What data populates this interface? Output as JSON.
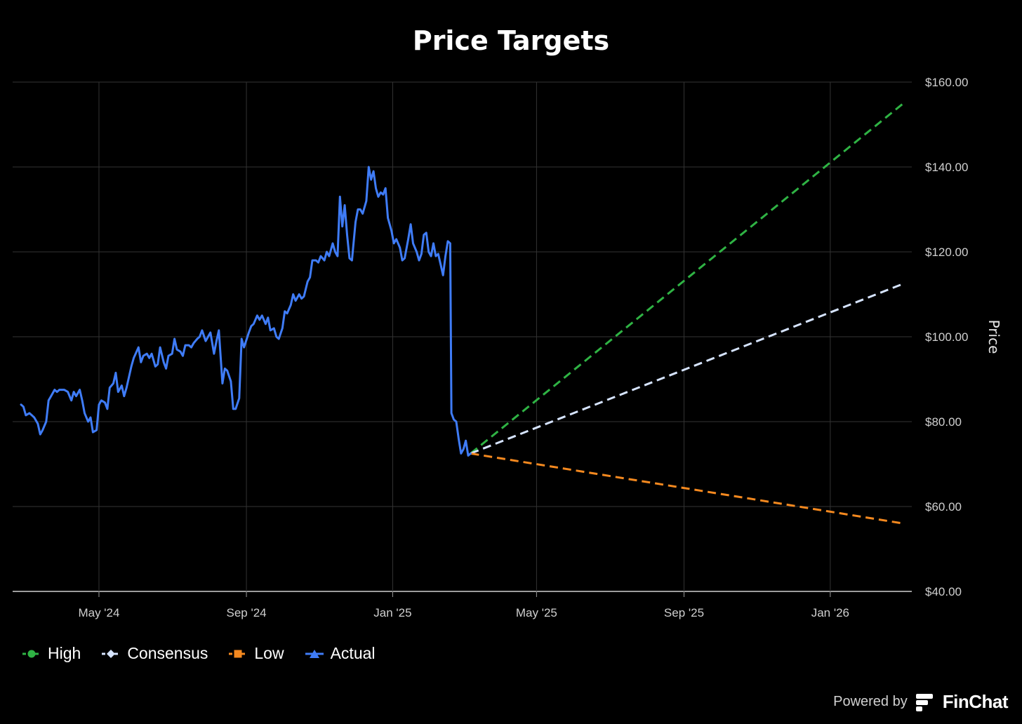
{
  "chart_data": {
    "type": "line",
    "title": "Price Targets",
    "ylabel": "Price",
    "ylim": [
      40,
      160
    ],
    "y_ticks": [
      40,
      60,
      80,
      100,
      120,
      140,
      160
    ],
    "y_tick_labels": [
      "$40.00",
      "$60.00",
      "$80.00",
      "$100.00",
      "$120.00",
      "$140.00",
      "$160.00"
    ],
    "x_ticks": [
      "2024-05-01",
      "2024-09-01",
      "2025-01-01",
      "2025-05-01",
      "2025-09-01",
      "2026-01-01"
    ],
    "x_tick_labels": [
      "May '24",
      "Sep '24",
      "Jan '25",
      "May '25",
      "Sep '25",
      "Jan '26"
    ],
    "xlim": [
      "2024-02-19",
      "2026-03-10"
    ],
    "grid": true,
    "legend_position": "bottom-left",
    "series": [
      {
        "name": "High",
        "color": "#2fb344",
        "style": "dashed",
        "marker": "circle",
        "points": [
          [
            "2025-03-07",
            72.5
          ],
          [
            "2026-03-03",
            155
          ]
        ]
      },
      {
        "name": "Consensus",
        "color": "#d6e4ff",
        "style": "dashed",
        "marker": "diamond",
        "points": [
          [
            "2025-03-07",
            72.5
          ],
          [
            "2026-03-03",
            112.5
          ]
        ]
      },
      {
        "name": "Low",
        "color": "#f5891f",
        "style": "dashed",
        "marker": "square",
        "points": [
          [
            "2025-03-07",
            72.5
          ],
          [
            "2026-03-03",
            56
          ]
        ]
      },
      {
        "name": "Actual",
        "color": "#3f7cf7",
        "style": "solid",
        "marker": "triangle",
        "points": [
          [
            "2024-02-26",
            84
          ],
          [
            "2024-02-28",
            83.5
          ],
          [
            "2024-03-01",
            81.5
          ],
          [
            "2024-03-04",
            82
          ],
          [
            "2024-03-06",
            81.5
          ],
          [
            "2024-03-08",
            81
          ],
          [
            "2024-03-11",
            79.5
          ],
          [
            "2024-03-13",
            77
          ],
          [
            "2024-03-15",
            78
          ],
          [
            "2024-03-18",
            80
          ],
          [
            "2024-03-20",
            85
          ],
          [
            "2024-03-22",
            86
          ],
          [
            "2024-03-25",
            87.5
          ],
          [
            "2024-03-27",
            87
          ],
          [
            "2024-03-29",
            87.5
          ],
          [
            "2024-04-02",
            87.5
          ],
          [
            "2024-04-05",
            87
          ],
          [
            "2024-04-08",
            85
          ],
          [
            "2024-04-10",
            87
          ],
          [
            "2024-04-12",
            86
          ],
          [
            "2024-04-15",
            87.5
          ],
          [
            "2024-04-17",
            85
          ],
          [
            "2024-04-19",
            82
          ],
          [
            "2024-04-22",
            80
          ],
          [
            "2024-04-24",
            81
          ],
          [
            "2024-04-26",
            77.5
          ],
          [
            "2024-04-29",
            78
          ],
          [
            "2024-05-01",
            84
          ],
          [
            "2024-05-03",
            85
          ],
          [
            "2024-05-06",
            84.5
          ],
          [
            "2024-05-08",
            83
          ],
          [
            "2024-05-10",
            88
          ],
          [
            "2024-05-13",
            89
          ],
          [
            "2024-05-15",
            91.5
          ],
          [
            "2024-05-17",
            87
          ],
          [
            "2024-05-20",
            88.5
          ],
          [
            "2024-05-22",
            86
          ],
          [
            "2024-05-24",
            88
          ],
          [
            "2024-05-28",
            93
          ],
          [
            "2024-05-30",
            95
          ],
          [
            "2024-06-03",
            97.5
          ],
          [
            "2024-06-05",
            94
          ],
          [
            "2024-06-07",
            95.5
          ],
          [
            "2024-06-10",
            96
          ],
          [
            "2024-06-12",
            95
          ],
          [
            "2024-06-14",
            96
          ],
          [
            "2024-06-17",
            93
          ],
          [
            "2024-06-19",
            93.5
          ],
          [
            "2024-06-21",
            97.5
          ],
          [
            "2024-06-24",
            94
          ],
          [
            "2024-06-26",
            92.5
          ],
          [
            "2024-06-28",
            95.5
          ],
          [
            "2024-07-01",
            96
          ],
          [
            "2024-07-03",
            99.5
          ],
          [
            "2024-07-05",
            97
          ],
          [
            "2024-07-08",
            96.5
          ],
          [
            "2024-07-10",
            95.5
          ],
          [
            "2024-07-12",
            98
          ],
          [
            "2024-07-15",
            98
          ],
          [
            "2024-07-17",
            97.5
          ],
          [
            "2024-07-19",
            98.5
          ],
          [
            "2024-07-22",
            99.5
          ],
          [
            "2024-07-24",
            100
          ],
          [
            "2024-07-26",
            101.5
          ],
          [
            "2024-07-29",
            99
          ],
          [
            "2024-07-31",
            100
          ],
          [
            "2024-08-02",
            101
          ],
          [
            "2024-08-05",
            96
          ],
          [
            "2024-08-07",
            99
          ],
          [
            "2024-08-09",
            101.5
          ],
          [
            "2024-08-12",
            89
          ],
          [
            "2024-08-14",
            92.5
          ],
          [
            "2024-08-16",
            92
          ],
          [
            "2024-08-19",
            89.5
          ],
          [
            "2024-08-21",
            83
          ],
          [
            "2024-08-23",
            83
          ],
          [
            "2024-08-26",
            85.5
          ],
          [
            "2024-08-28",
            99.5
          ],
          [
            "2024-08-30",
            97.5
          ],
          [
            "2024-09-03",
            101
          ],
          [
            "2024-09-05",
            102.5
          ],
          [
            "2024-09-07",
            103
          ],
          [
            "2024-09-10",
            105
          ],
          [
            "2024-09-12",
            104
          ],
          [
            "2024-09-14",
            105
          ],
          [
            "2024-09-17",
            103
          ],
          [
            "2024-09-19",
            104.5
          ],
          [
            "2024-09-21",
            101.5
          ],
          [
            "2024-09-24",
            102
          ],
          [
            "2024-09-26",
            100
          ],
          [
            "2024-09-28",
            99.5
          ],
          [
            "2024-10-01",
            102
          ],
          [
            "2024-10-03",
            106
          ],
          [
            "2024-10-05",
            105.5
          ],
          [
            "2024-10-08",
            107.5
          ],
          [
            "2024-10-10",
            110
          ],
          [
            "2024-10-12",
            108.5
          ],
          [
            "2024-10-15",
            110
          ],
          [
            "2024-10-17",
            109
          ],
          [
            "2024-10-19",
            109.5
          ],
          [
            "2024-10-22",
            113
          ],
          [
            "2024-10-24",
            114
          ],
          [
            "2024-10-26",
            118
          ],
          [
            "2024-10-29",
            118
          ],
          [
            "2024-10-31",
            117.5
          ],
          [
            "2024-11-02",
            119
          ],
          [
            "2024-11-05",
            118
          ],
          [
            "2024-11-07",
            120
          ],
          [
            "2024-11-09",
            119
          ],
          [
            "2024-11-12",
            122
          ],
          [
            "2024-11-14",
            120
          ],
          [
            "2024-11-16",
            119
          ],
          [
            "2024-11-18",
            133
          ],
          [
            "2024-11-20",
            126
          ],
          [
            "2024-11-22",
            131
          ],
          [
            "2024-11-24",
            124
          ],
          [
            "2024-11-26",
            118.5
          ],
          [
            "2024-11-28",
            118
          ],
          [
            "2024-12-01",
            127
          ],
          [
            "2024-12-03",
            130
          ],
          [
            "2024-12-05",
            130
          ],
          [
            "2024-12-07",
            129
          ],
          [
            "2024-12-10",
            132
          ],
          [
            "2024-12-12",
            140
          ],
          [
            "2024-12-14",
            137
          ],
          [
            "2024-12-16",
            139
          ],
          [
            "2024-12-18",
            135
          ],
          [
            "2024-12-20",
            133
          ],
          [
            "2024-12-22",
            134
          ],
          [
            "2024-12-24",
            133.5
          ],
          [
            "2024-12-26",
            135
          ],
          [
            "2024-12-28",
            128
          ],
          [
            "2024-12-31",
            125
          ],
          [
            "2025-01-02",
            122
          ],
          [
            "2025-01-04",
            123
          ],
          [
            "2025-01-07",
            121
          ],
          [
            "2025-01-09",
            118
          ],
          [
            "2025-01-11",
            118.5
          ],
          [
            "2025-01-14",
            123
          ],
          [
            "2025-01-16",
            126.5
          ],
          [
            "2025-01-18",
            122
          ],
          [
            "2025-01-21",
            120
          ],
          [
            "2025-01-23",
            118
          ],
          [
            "2025-01-25",
            119.5
          ],
          [
            "2025-01-27",
            124
          ],
          [
            "2025-01-29",
            124.5
          ],
          [
            "2025-01-31",
            120
          ],
          [
            "2025-02-02",
            119
          ],
          [
            "2025-02-04",
            122
          ],
          [
            "2025-02-06",
            119
          ],
          [
            "2025-02-08",
            119.5
          ],
          [
            "2025-02-10",
            117
          ],
          [
            "2025-02-12",
            114.5
          ],
          [
            "2025-02-14",
            119
          ],
          [
            "2025-02-16",
            122.5
          ],
          [
            "2025-02-18",
            122
          ],
          [
            "2025-02-19",
            82
          ],
          [
            "2025-02-21",
            80.5
          ],
          [
            "2025-02-23",
            80
          ],
          [
            "2025-02-25",
            76
          ],
          [
            "2025-02-27",
            72.5
          ],
          [
            "2025-03-01",
            73.5
          ],
          [
            "2025-03-03",
            75.5
          ],
          [
            "2025-03-05",
            72
          ],
          [
            "2025-03-07",
            72.5
          ]
        ]
      }
    ]
  },
  "footer": {
    "powered_by": "Powered by",
    "brand": "FinChat"
  }
}
